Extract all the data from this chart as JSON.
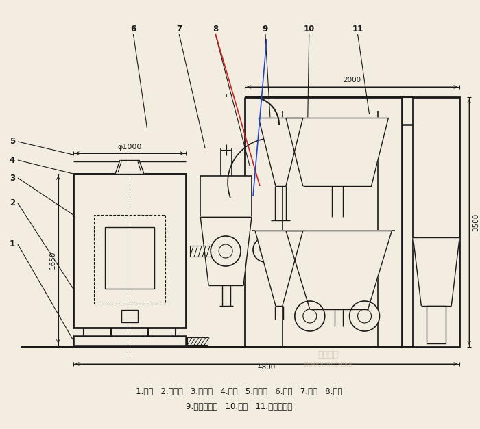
{
  "bg_color": "#f2ede0",
  "lc": "#1a1a1a",
  "red_color": "#cc2222",
  "blue_color": "#2244cc",
  "line1": "1.底座   2.回风道   3.激振器   4.筛网   5.进料斗   6.风机   7.绞龙   8.料仓",
  "line2": "9.旋风分离器   10.支架   11.布袋除尘器",
  "dim_phi": "φ1000",
  "dim_1650": "1650",
  "dim_2000": "2000",
  "dim_3500": "3500",
  "dim_4800": "4800",
  "wm1": "金汉机械",
  "wm2": "JINHAN MACHINE"
}
